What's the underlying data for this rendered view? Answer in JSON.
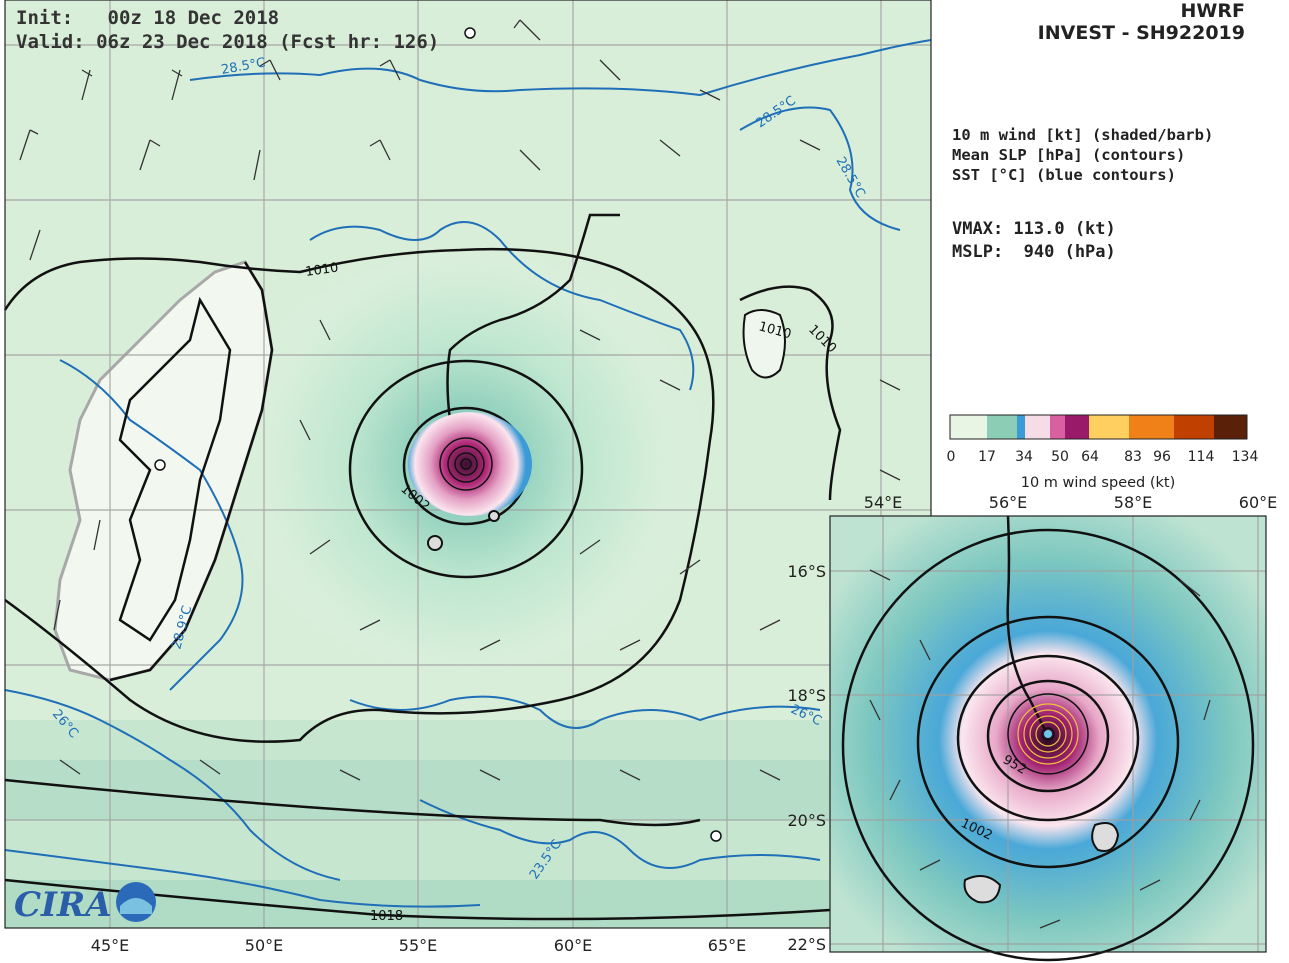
{
  "header": {
    "init": "Init:   00z 18 Dec 2018",
    "valid": "Valid: 06z 23 Dec 2018 (Fcst hr: 126)"
  },
  "title": {
    "model": "HWRF",
    "storm": "INVEST - SH922019"
  },
  "legend_info": {
    "line1": "10 m wind [kt] (shaded/barb)",
    "line2": "Mean SLP [hPa] (contours)",
    "line3": "SST [°C] (blue contours)",
    "vmax": "VMAX: 113.0 (kt)",
    "mslp": "MSLP:  940 (hPa)"
  },
  "colorbar": {
    "ticks": [
      "0",
      "17",
      "34",
      "50",
      "64",
      "83",
      "96",
      "114",
      "134"
    ],
    "label": "10 m wind speed (kt)",
    "colors": [
      "#e8f4e4",
      "#7ec8b0",
      "#3a9bd6",
      "#f6dce6",
      "#c0207a",
      "#ffd060",
      "#f07010",
      "#a03000",
      "#4a1800"
    ]
  },
  "main_map": {
    "lon_labels": [
      "45°E",
      "50°E",
      "55°E",
      "60°E",
      "65°E"
    ],
    "contour_labels": {
      "slp_1010": "1010",
      "slp_1010b": "1010",
      "slp_1010c": "1010",
      "slp_1002": "1002",
      "slp_1018": "1018",
      "sst_285": "28.5°C",
      "sst_285b": "28.5°C",
      "sst_285c": "28.5°C",
      "sst_26": "26°C",
      "sst_26b": "26°C",
      "sst_235": "23.5°C",
      "sst_289": "28.9°C"
    }
  },
  "inset": {
    "lon_labels": [
      "54°E",
      "56°E",
      "58°E",
      "60°E"
    ],
    "lat_labels": [
      "16°S",
      "18°S",
      "20°S",
      "22°S"
    ],
    "contour_labels": {
      "slp_1002": "1002",
      "slp_952": "952"
    }
  },
  "logo": {
    "text": "CIRA"
  }
}
